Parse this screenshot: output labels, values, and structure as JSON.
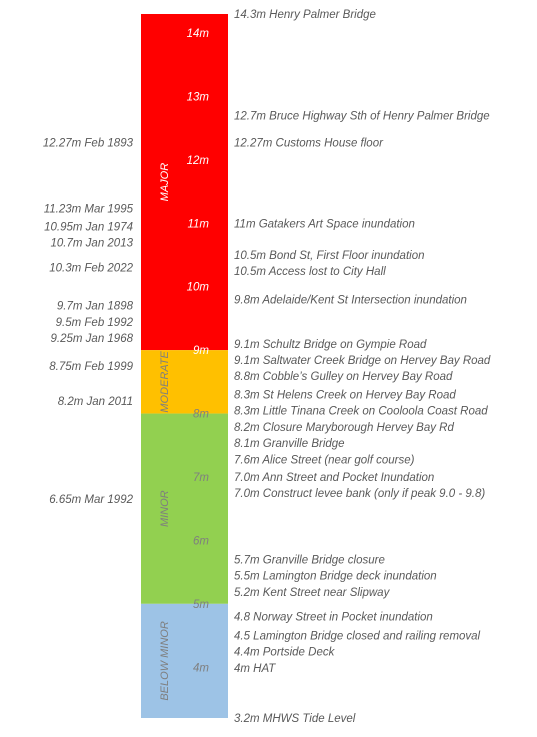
{
  "chart_data": {
    "type": "bar",
    "orientation": "vertical-gauge",
    "ylim": [
      3.2,
      14.3
    ],
    "units": "m",
    "bands": [
      {
        "name": "MAJOR",
        "from": 9.0,
        "to": 14.3,
        "color": "#ff0000",
        "text_color": "#ffffff"
      },
      {
        "name": "MODERATE",
        "from": 8.0,
        "to": 9.0,
        "color": "#ffc000",
        "text_color": "#7f7f7f"
      },
      {
        "name": "MINOR",
        "from": 5.0,
        "to": 8.0,
        "color": "#92d050",
        "text_color": "#7f7f7f"
      },
      {
        "name": "BELOW MINOR",
        "from": 3.2,
        "to": 5.0,
        "color": "#9dc3e6",
        "text_color": "#7f7f7f"
      }
    ],
    "ticks": [
      {
        "value": 14,
        "label": "14m",
        "color": "#ffffff"
      },
      {
        "value": 13,
        "label": "13m",
        "color": "#ffffff"
      },
      {
        "value": 12,
        "label": "12m",
        "color": "#ffffff"
      },
      {
        "value": 11,
        "label": "11m",
        "color": "#ffffff"
      },
      {
        "value": 10,
        "label": "10m",
        "color": "#ffffff"
      },
      {
        "value": 9,
        "label": "9m",
        "color": "#ffffff"
      },
      {
        "value": 8,
        "label": "8m",
        "color": "#7f7f7f"
      },
      {
        "value": 7,
        "label": "7m",
        "color": "#7f7f7f"
      },
      {
        "value": 6,
        "label": "6m",
        "color": "#7f7f7f"
      },
      {
        "value": 5,
        "label": "5m",
        "color": "#7f7f7f"
      },
      {
        "value": 4,
        "label": "4m",
        "color": "#7f7f7f"
      }
    ],
    "historical_floods": [
      {
        "value": 12.27,
        "label": "12.27m Feb 1893"
      },
      {
        "value": 11.23,
        "label": "11.23m Mar 1995"
      },
      {
        "value": 10.95,
        "label": "10.95m Jan 1974"
      },
      {
        "value": 10.7,
        "label": "10.7m Jan 2013"
      },
      {
        "value": 10.3,
        "label": "10.3m Feb 2022"
      },
      {
        "value": 9.7,
        "label": "9.7m Jan 1898"
      },
      {
        "value": 9.5,
        "label": "9.5m Feb 1992"
      },
      {
        "value": 9.25,
        "label": "9.25m Jan 1968"
      },
      {
        "value": 8.75,
        "label": "8.75m Feb 1999"
      },
      {
        "value": 8.2,
        "label": "8.2m Jan 2011"
      },
      {
        "value": 6.65,
        "label": "6.65m Mar 1992"
      }
    ],
    "impacts": [
      {
        "value": 14.3,
        "label": "14.3m Henry Palmer Bridge"
      },
      {
        "value": 12.7,
        "label": "12.7m Bruce Highway Sth of Henry Palmer Bridge"
      },
      {
        "value": 12.27,
        "label": "12.27m Customs House floor"
      },
      {
        "value": 11.0,
        "label": "11m Gatakers Art Space inundation"
      },
      {
        "value": 10.5,
        "label": "10.5m Bond St, First Floor inundation"
      },
      {
        "value": 10.5,
        "label": "10.5m Access lost to City Hall"
      },
      {
        "value": 9.8,
        "label": "9.8m Adelaide/Kent St Intersection inundation"
      },
      {
        "value": 9.1,
        "label": "9.1m Schultz Bridge on Gympie Road"
      },
      {
        "value": 9.1,
        "label": "9.1m Saltwater Creek Bridge on Hervey Bay Road"
      },
      {
        "value": 8.8,
        "label": "8.8m Cobble’s Gulley on Hervey Bay Road"
      },
      {
        "value": 8.3,
        "label": "8.3m St Helens Creek on Hervey Bay Road"
      },
      {
        "value": 8.3,
        "label": "8.3m Little Tinana Creek on Cooloola Coast Road"
      },
      {
        "value": 8.2,
        "label": "8.2m Closure Maryborough Hervey Bay Rd"
      },
      {
        "value": 8.1,
        "label": "8.1m Granville Bridge"
      },
      {
        "value": 7.6,
        "label": "7.6m Alice Street (near golf course)"
      },
      {
        "value": 7.0,
        "label": "7.0m Ann Street and Pocket Inundation"
      },
      {
        "value": 7.0,
        "label": "7.0m Construct levee bank (only if peak 9.0 - 9.8)"
      },
      {
        "value": 5.7,
        "label": "5.7m Granville Bridge closure"
      },
      {
        "value": 5.5,
        "label": "5.5m Lamington Bridge deck inundation"
      },
      {
        "value": 5.2,
        "label": "5.2m Kent Street near Slipway"
      },
      {
        "value": 4.8,
        "label": "4.8 Norway Street in Pocket inundation"
      },
      {
        "value": 4.5,
        "label": "4.5 Lamington Bridge closed and railing removal"
      },
      {
        "value": 4.4,
        "label": "4.4m Portside Deck"
      },
      {
        "value": 4.0,
        "label": "4m HAT"
      },
      {
        "value": 3.2,
        "label": "3.2m MHWS Tide Level"
      }
    ]
  }
}
